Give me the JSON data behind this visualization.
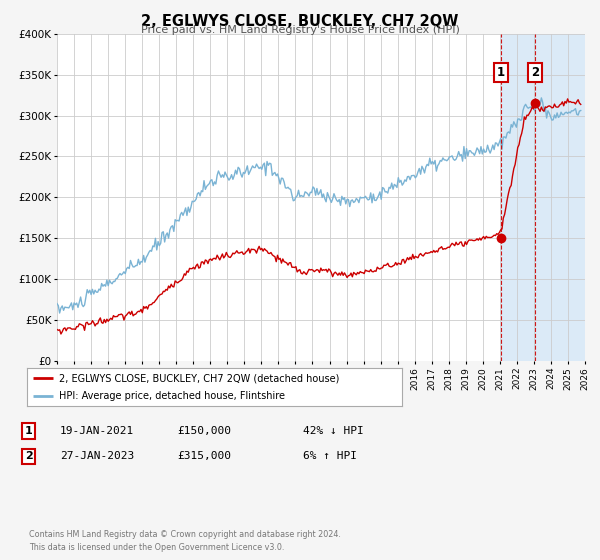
{
  "title": "2, EGLWYS CLOSE, BUCKLEY, CH7 2QW",
  "subtitle": "Price paid vs. HM Land Registry's House Price Index (HPI)",
  "legend_line1": "2, EGLWYS CLOSE, BUCKLEY, CH7 2QW (detached house)",
  "legend_line2": "HPI: Average price, detached house, Flintshire",
  "transaction1_date": "19-JAN-2021",
  "transaction1_price": "£150,000",
  "transaction1_hpi": "42% ↓ HPI",
  "transaction1_year": 2021.05,
  "transaction1_value": 150000,
  "transaction2_date": "27-JAN-2023",
  "transaction2_price": "£315,000",
  "transaction2_hpi": "6% ↑ HPI",
  "transaction2_year": 2023.07,
  "transaction2_value": 315000,
  "footer1": "Contains HM Land Registry data © Crown copyright and database right 2024.",
  "footer2": "This data is licensed under the Open Government Licence v3.0.",
  "hpi_color": "#7ab3d4",
  "price_color": "#cc0000",
  "background_color": "#f5f5f5",
  "plot_bg_color": "#ffffff",
  "shaded_region_color": "#dbeaf7",
  "vline_color": "#cc0000",
  "grid_color": "#cccccc",
  "ylim": [
    0,
    400000
  ],
  "xlim_start": 1995,
  "xlim_end": 2026,
  "ylabel_ticks": [
    0,
    50000,
    100000,
    150000,
    200000,
    250000,
    300000,
    350000,
    400000
  ],
  "ylabel_labels": [
    "£0",
    "£50K",
    "£100K",
    "£150K",
    "£200K",
    "£250K",
    "£300K",
    "£350K",
    "£400K"
  ]
}
